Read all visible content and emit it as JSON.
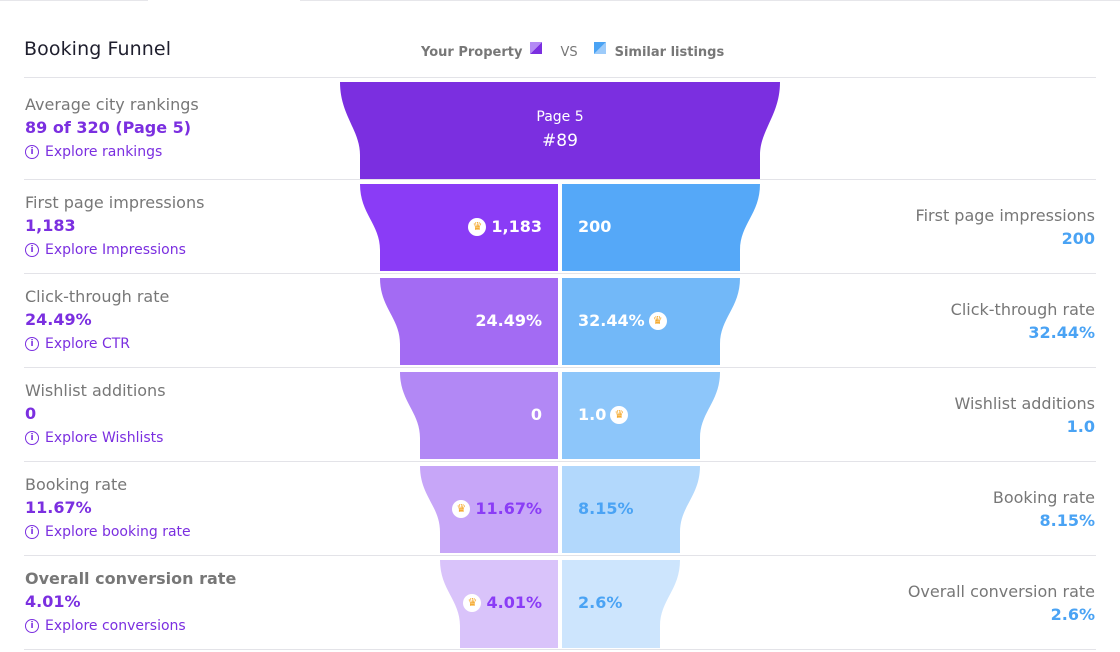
{
  "title": "Booking Funnel",
  "legend": {
    "your_property": "Your Property",
    "vs": "VS",
    "similar": "Similar listings"
  },
  "colors": {
    "accent_purple": "#7b2fe0",
    "accent_blue": "#4aa3f4"
  },
  "top": {
    "label": "Average city rankings",
    "value": "89 of 320 (Page 5)",
    "link": "Explore rankings",
    "funnel_page": "Page 5",
    "funnel_rank": "#89"
  },
  "rows": [
    {
      "label": "First page impressions",
      "value": "1,183",
      "link": "Explore Impressions",
      "yours": "1,183",
      "similar": "200",
      "right_label": "First page impressions",
      "right_value": "200",
      "winner": "yours"
    },
    {
      "label": "Click-through rate",
      "value": "24.49%",
      "link": "Explore CTR",
      "yours": "24.49%",
      "similar": "32.44%",
      "right_label": "Click-through rate",
      "right_value": "32.44%",
      "winner": "similar"
    },
    {
      "label": "Wishlist additions",
      "value": "0",
      "link": "Explore Wishlists",
      "yours": "0",
      "similar": "1.0",
      "right_label": "Wishlist additions",
      "right_value": "1.0",
      "winner": "similar"
    },
    {
      "label": "Booking rate",
      "value": "11.67%",
      "link": "Explore booking rate",
      "yours": "11.67%",
      "similar": "8.15%",
      "right_label": "Booking rate",
      "right_value": "8.15%",
      "winner": "yours"
    },
    {
      "label": "Overall conversion rate",
      "value": "4.01%",
      "link": "Explore conversions",
      "yours": "4.01%",
      "similar": "2.6%",
      "right_label": "Overall conversion rate",
      "right_value": "2.6%",
      "winner": "yours"
    }
  ]
}
